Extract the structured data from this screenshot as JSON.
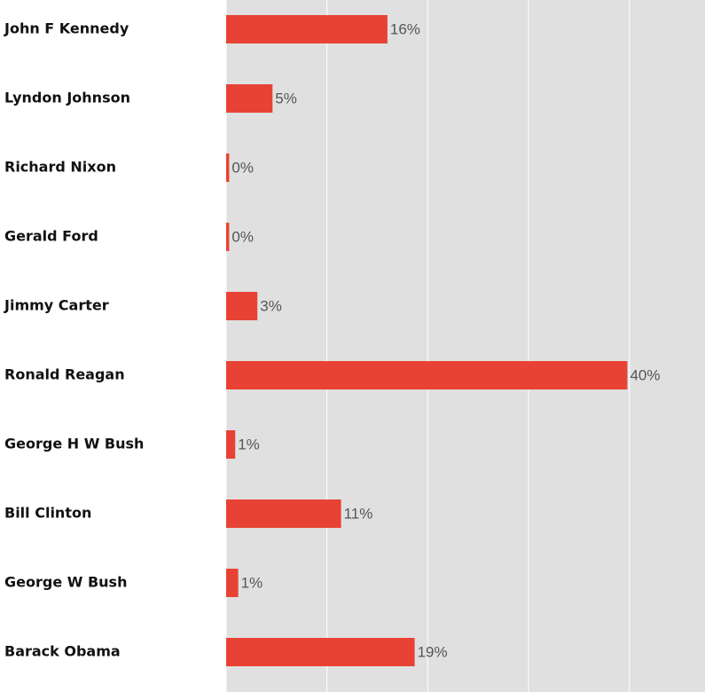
{
  "chart_data": {
    "type": "bar",
    "orientation": "horizontal",
    "categories": [
      "John F Kennedy",
      "Lyndon Johnson",
      "Richard Nixon",
      "Gerald Ford",
      "Jimmy Carter",
      "Ronald Reagan",
      "George H W Bush",
      "Bill Clinton",
      "George W Bush",
      "Barack Obama"
    ],
    "values": [
      16.0,
      4.6,
      0.3,
      0.3,
      3.1,
      39.8,
      0.9,
      11.4,
      1.2,
      18.7
    ],
    "value_labels": [
      "16%",
      "5%",
      "0%",
      "0%",
      "3%",
      "40%",
      "1%",
      "11%",
      "1%",
      "19%"
    ],
    "color": "#e84235",
    "xlim": [
      0,
      47.5
    ],
    "xticks": [
      0,
      10,
      20,
      30,
      40
    ],
    "grid": true
  }
}
